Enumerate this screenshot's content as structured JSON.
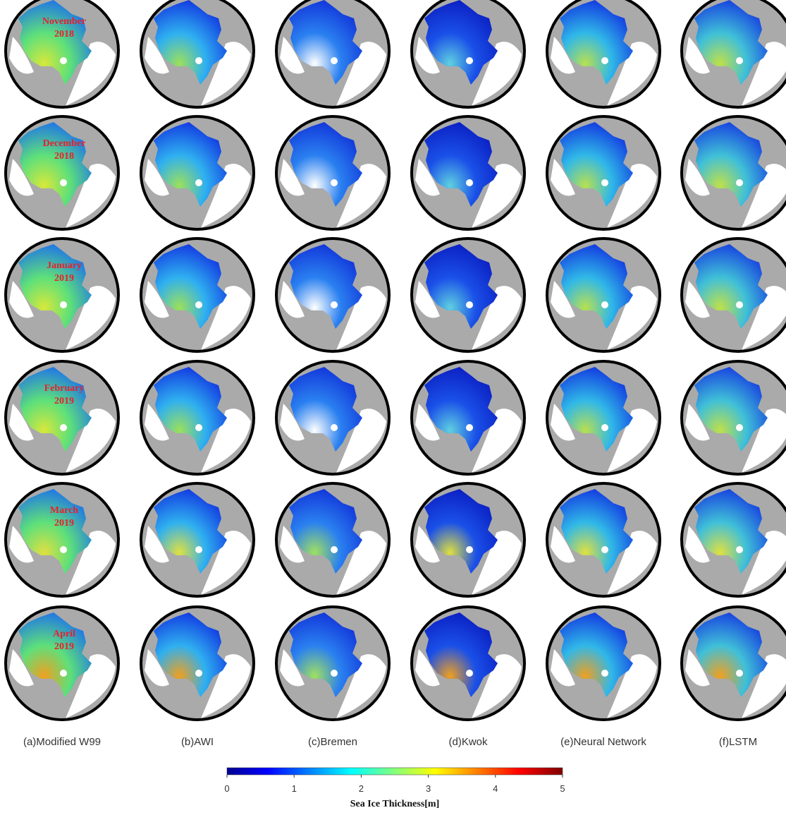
{
  "rows": [
    {
      "month": "November",
      "year": "2018"
    },
    {
      "month": "December",
      "year": "2018"
    },
    {
      "month": "January",
      "year": "2019"
    },
    {
      "month": "February",
      "year": "2019"
    },
    {
      "month": "March",
      "year": "2019"
    },
    {
      "month": "April",
      "year": "2019"
    }
  ],
  "columns": [
    "(a)Modified W99",
    "(b)AWI",
    "(c)Bremen",
    "(d)Kwok",
    "(e)Neural Network",
    "(f)LSTM"
  ],
  "colorbar": {
    "label": "Sea Ice Thickness[m]",
    "lim": [
      0,
      5
    ],
    "ticks": [
      0,
      1,
      2,
      3,
      4,
      5
    ]
  }
}
